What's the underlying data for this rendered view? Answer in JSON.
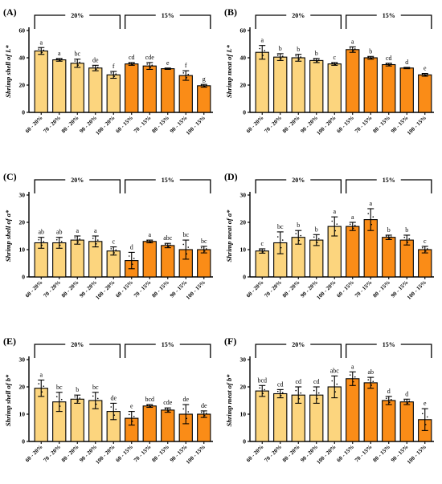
{
  "colors": {
    "light": "#FCD57E",
    "dark": "#FA8C17",
    "stroke": "#000000"
  },
  "chart_data": [
    {
      "type": "bar",
      "panel": "(A)",
      "ylabel": "Shrimp shell of L*",
      "ylim": [
        0,
        60
      ],
      "yticks": [
        0,
        20,
        40,
        60
      ],
      "groups": [
        "20%",
        "15%"
      ],
      "categories": [
        "60 - 20%",
        "70 - 20%",
        "80 - 20%",
        "90 - 20%",
        "100 - 20%",
        "60 - 15%",
        "70 - 15%",
        "80 - 15%",
        "90 - 15%",
        "100 - 15%"
      ],
      "values": [
        45,
        38.5,
        36,
        32.5,
        27.5,
        35.5,
        34,
        32,
        27,
        19.5
      ],
      "errors": [
        2.5,
        1,
        3,
        2,
        2.5,
        1,
        2.5,
        0.5,
        3.5,
        1
      ],
      "significance": [
        "a",
        "a",
        "bc",
        "de",
        "f",
        "cd",
        "cde",
        "e",
        "f",
        "g"
      ]
    },
    {
      "type": "bar",
      "panel": "(B)",
      "ylabel": "Shrimp meat of L*",
      "ylim": [
        0,
        60
      ],
      "yticks": [
        0,
        20,
        40,
        60
      ],
      "groups": [
        "20%",
        "15%"
      ],
      "categories": [
        "60 - 20%",
        "70 - 20%",
        "80 - 20%",
        "90 - 20%",
        "100 - 20%",
        "60 - 15%",
        "70 - 15%",
        "80 - 15%",
        "90 - 15%",
        "100 - 15%"
      ],
      "values": [
        44,
        40.5,
        40,
        38,
        35.5,
        46,
        40,
        35,
        32.5,
        27.5
      ],
      "errors": [
        5,
        2.5,
        2.5,
        1.5,
        1,
        2,
        1,
        1,
        0.5,
        1
      ],
      "significance": [
        "a",
        "b",
        "b",
        "b",
        "c",
        "a",
        "b",
        "cd",
        "d",
        "e"
      ]
    },
    {
      "type": "bar",
      "panel": "(C)",
      "ylabel": "Shrimp shell of a*",
      "ylim": [
        0,
        30
      ],
      "yticks": [
        0,
        10,
        20,
        30
      ],
      "groups": [
        "20%",
        "15%"
      ],
      "categories": [
        "60 - 20%",
        "70 - 20%",
        "80 - 20%",
        "90 - 20%",
        "100 - 20%",
        "60 - 15%",
        "70 - 15%",
        "80 - 15%",
        "90 - 15%",
        "100 - 15%"
      ],
      "values": [
        12.5,
        12.5,
        13.5,
        13,
        9.5,
        6,
        13,
        11.5,
        10,
        10
      ],
      "errors": [
        2,
        2,
        1.5,
        2,
        1.5,
        3,
        0.5,
        0.8,
        3.5,
        1.2
      ],
      "significance": [
        "ab",
        "ab",
        "a",
        "a",
        "c",
        "d",
        "a",
        "abc",
        "bc",
        "bc"
      ]
    },
    {
      "type": "bar",
      "panel": "(D)",
      "ylabel": "Shrimp meat of a*",
      "ylim": [
        0,
        30
      ],
      "yticks": [
        0,
        10,
        20,
        30
      ],
      "groups": [
        "20%",
        "15%"
      ],
      "categories": [
        "60 - 20%",
        "70 - 20%",
        "80 - 20%",
        "90 - 20%",
        "100 - 20%",
        "60 - 15%",
        "70 - 15%",
        "80 - 15%",
        "90 - 15%",
        "100 - 15%"
      ],
      "values": [
        9.5,
        12.5,
        14.5,
        13.5,
        18.5,
        18.5,
        21,
        14.5,
        13.5,
        10
      ],
      "errors": [
        0.8,
        4,
        2.5,
        2,
        3.5,
        1.5,
        4,
        0.8,
        1.8,
        1.2
      ],
      "significance": [
        "c",
        "bc",
        "b",
        "b",
        "a",
        "a",
        "a",
        "b",
        "b",
        "c"
      ]
    },
    {
      "type": "bar",
      "panel": "(E)",
      "ylabel": "Shrimp shell of b*",
      "ylim": [
        0,
        30
      ],
      "yticks": [
        0,
        10,
        20,
        30
      ],
      "groups": [
        "20%",
        "15%"
      ],
      "categories": [
        "60 - 20%",
        "70 - 20%",
        "80 - 20%",
        "90 - 20%",
        "100 - 20%",
        "60 - 15%",
        "70 - 15%",
        "80 - 15%",
        "90 - 15%",
        "100 - 15%"
      ],
      "values": [
        19.5,
        14.5,
        15.5,
        15,
        11,
        8.5,
        13,
        11.5,
        10,
        10
      ],
      "errors": [
        3,
        3.5,
        1.5,
        3,
        3,
        2.5,
        0.5,
        0.8,
        3.5,
        1.2
      ],
      "significance": [
        "a",
        "bc",
        "b",
        "bc",
        "de",
        "e",
        "bcd",
        "cde",
        "de",
        "de"
      ]
    },
    {
      "type": "bar",
      "panel": "(F)",
      "ylabel": "Shrimp meat of b*",
      "ylim": [
        0,
        30
      ],
      "yticks": [
        0,
        10,
        20,
        30
      ],
      "groups": [
        "20%",
        "15%"
      ],
      "categories": [
        "60 - 20%",
        "70 - 20%",
        "80 - 20%",
        "90 - 20%",
        "100 - 20%",
        "60 - 15%",
        "70 - 15%",
        "80 - 15%",
        "90 - 15%",
        "100 - 15%"
      ],
      "values": [
        18.5,
        17.5,
        17,
        17,
        20,
        23,
        21.5,
        15,
        14.5,
        8
      ],
      "errors": [
        2,
        1.5,
        3,
        3,
        4,
        2.5,
        2,
        1.5,
        1,
        4
      ],
      "significance": [
        "bcd",
        "cd",
        "cd",
        "cd",
        "abc",
        "a",
        "ab",
        "d",
        "d",
        "e"
      ]
    }
  ]
}
